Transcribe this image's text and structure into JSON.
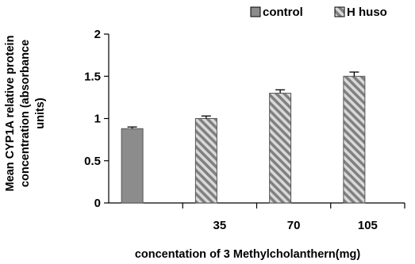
{
  "chart_data": {
    "type": "bar",
    "categories": [
      "",
      "35",
      "70",
      "105"
    ],
    "series": [
      {
        "name": "control",
        "values": [
          0.88,
          null,
          null,
          null
        ],
        "errors": [
          0.02,
          null,
          null,
          null
        ],
        "color": "#8c8c8c",
        "pattern": "solid"
      },
      {
        "name": "H huso",
        "values": [
          null,
          1.0,
          1.3,
          1.5
        ],
        "errors": [
          null,
          0.03,
          0.04,
          0.05
        ],
        "color": "#8c8c8c",
        "pattern": "diagonal-stripes"
      }
    ],
    "ylabel": "Mean CYP1A relative protein concentration (absorbance units)",
    "ylabel_lines": [
      "Mean CYP1A relative protein",
      "concentration (absorbance",
      "units)"
    ],
    "xlabel": "concentation of 3 Methylcholanthern(mg)",
    "ylim": [
      0,
      2
    ],
    "yticks": [
      0,
      0.5,
      1,
      1.5,
      2
    ],
    "ytick_labels": [
      "0",
      "0.5",
      "1",
      "1.5",
      "2"
    ],
    "legend_position": "top-right",
    "grid": false
  }
}
